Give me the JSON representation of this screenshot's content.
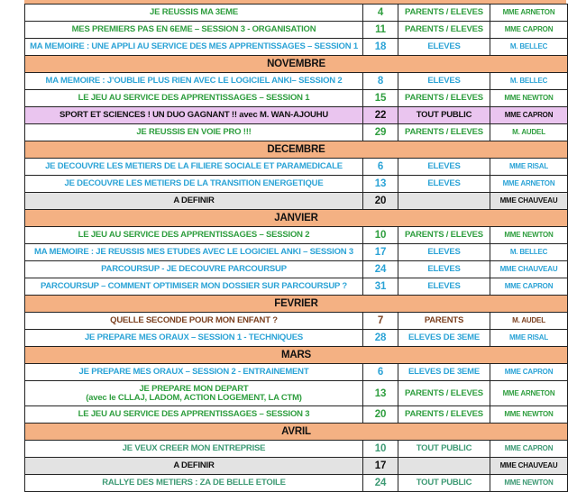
{
  "colors": {
    "month_bg": "#f4b183",
    "tbd_bg": "#e3e3e3",
    "highlight_bg": "#eac5ef",
    "green": "#2f9e3f",
    "blue": "#2ba3d6",
    "brown": "#7b3f1e",
    "teal": "#3d9a74"
  },
  "rows": [
    {
      "type": "event",
      "color": "green",
      "title": "JE REUSSIS MA 3EME",
      "date": "4",
      "public": "PARENTS / ELEVES",
      "teacher": "MME ARNETON"
    },
    {
      "type": "event",
      "color": "green",
      "title": "MES PREMIERS PAS EN 6EME – SESSION 3 - ORGANISATION",
      "date": "11",
      "public": "PARENTS / ELEVES",
      "teacher": "MME CAPRON"
    },
    {
      "type": "event",
      "color": "blue",
      "title": "MA MEMOIRE : UNE APPLI AU SERVICE DES MES APPRENTISSAGES – SESSION 1",
      "date": "18",
      "public": "ELEVES",
      "teacher": "M. BELLEC"
    },
    {
      "type": "month",
      "title": "NOVEMBRE"
    },
    {
      "type": "event",
      "color": "blue",
      "title": "MA MEMOIRE : J’OUBLIE PLUS RIEN AVEC LE LOGICIEL ANKI– SESSION 2",
      "date": "8",
      "public": "ELEVES",
      "teacher": "M. BELLEC"
    },
    {
      "type": "event",
      "color": "green",
      "title": "LE JEU AU SERVICE DES APPRENTISSAGES – SESSION 1",
      "date": "15",
      "public": "PARENTS / ELEVES",
      "teacher": "MME NEWTON"
    },
    {
      "type": "event",
      "color": "pink",
      "title": "SPORT ET SCIENCES ! UN DUO GAGNANT !! avec  M. WAN-AJOUHU",
      "date": "22",
      "public": "TOUT PUBLIC",
      "teacher": "MME CAPRON"
    },
    {
      "type": "event",
      "color": "green",
      "title": "JE REUSSIS EN VOIE PRO !!!",
      "date": "29",
      "public": "PARENTS / ELEVES",
      "teacher": "M. AUDEL"
    },
    {
      "type": "month",
      "title": "DECEMBRE"
    },
    {
      "type": "event",
      "color": "blue",
      "title": "JE DECOUVRE LES METIERS DE LA FILIERE SOCIALE ET PARAMEDICALE",
      "date": "6",
      "public": "ELEVES",
      "teacher": "MME RISAL"
    },
    {
      "type": "event",
      "color": "blue",
      "title": "JE DECOUVRE LES METIERS DE LA TRANSITION ENERGETIQUE",
      "date": "13",
      "public": "ELEVES",
      "teacher": "MME ARNETON"
    },
    {
      "type": "tbd",
      "title": "A DEFINIR",
      "date": "20",
      "public": "",
      "teacher": "MME CHAUVEAU"
    },
    {
      "type": "month",
      "title": "JANVIER"
    },
    {
      "type": "event",
      "color": "green",
      "title": "LE JEU AU SERVICE DES APPRENTISSAGES – SESSION 2",
      "date": "10",
      "public": "PARENTS / ELEVES",
      "teacher": "MME NEWTON"
    },
    {
      "type": "event",
      "color": "blue",
      "title": "MA MEMOIRE : JE REUSSIS MES ETUDES AVEC LE LOGICIEL ANKI – SESSION 3",
      "date": "17",
      "public": "ELEVES",
      "teacher": "M. BELLEC"
    },
    {
      "type": "event",
      "color": "blue",
      "title": "PARCOURSUP - JE DECOUVRE PARCOURSUP",
      "date": "24",
      "public": "ELEVES",
      "teacher": "MME CHAUVEAU"
    },
    {
      "type": "event",
      "color": "blue",
      "title": "PARCOURSUP – COMMENT OPTIMISER MON DOSSIER SUR PARCOURSUP ?",
      "date": "31",
      "public": "ELEVES",
      "teacher": "MME CAPRON"
    },
    {
      "type": "month",
      "title": "FEVRIER"
    },
    {
      "type": "event",
      "color": "brown",
      "title": "QUELLE SECONDE POUR MON ENFANT ?",
      "date": "7",
      "public": "PARENTS",
      "teacher": "M. AUDEL"
    },
    {
      "type": "event",
      "color": "blue",
      "title": "JE PREPARE MES ORAUX – SESSION 1 - TECHNIQUES",
      "date": "28",
      "public": "ELEVES DE 3EME",
      "teacher": "MME RISAL"
    },
    {
      "type": "month",
      "title": "MARS"
    },
    {
      "type": "event",
      "color": "blue",
      "title": "JE PREPARE MES ORAUX – SESSION 2 - ENTRAINEMENT",
      "date": "6",
      "public": "ELEVES DE 3EME",
      "teacher": "MME CAPRON"
    },
    {
      "type": "event",
      "color": "green",
      "tall": true,
      "title": "JE PREPARE MON DEPART",
      "subtitle": "(avec le CLLAJ, LADOM, ACTION LOGEMENT, LA CTM)",
      "date": "13",
      "public": "PARENTS / ELEVES",
      "teacher": "MME ARNETON"
    },
    {
      "type": "event",
      "color": "green",
      "title": "LE JEU AU SERVICE DES APPRENTISSAGES – SESSION 3",
      "date": "20",
      "public": "PARENTS / ELEVES",
      "teacher": "MME NEWTON"
    },
    {
      "type": "month",
      "title": "AVRIL"
    },
    {
      "type": "event",
      "color": "teal",
      "title": "JE VEUX CREER MON ENTREPRISE",
      "date": "10",
      "public": "TOUT PUBLIC",
      "teacher": "MME CAPRON"
    },
    {
      "type": "tbd",
      "title": "A DEFINIR",
      "date": "17",
      "public": "",
      "teacher": "MME CHAUVEAU"
    },
    {
      "type": "event",
      "color": "teal",
      "title": "RALLYE DES METIERS : ZA DE BELLE ETOILE",
      "date": "24",
      "public": "TOUT PUBLIC",
      "teacher": "MME NEWTON"
    }
  ]
}
